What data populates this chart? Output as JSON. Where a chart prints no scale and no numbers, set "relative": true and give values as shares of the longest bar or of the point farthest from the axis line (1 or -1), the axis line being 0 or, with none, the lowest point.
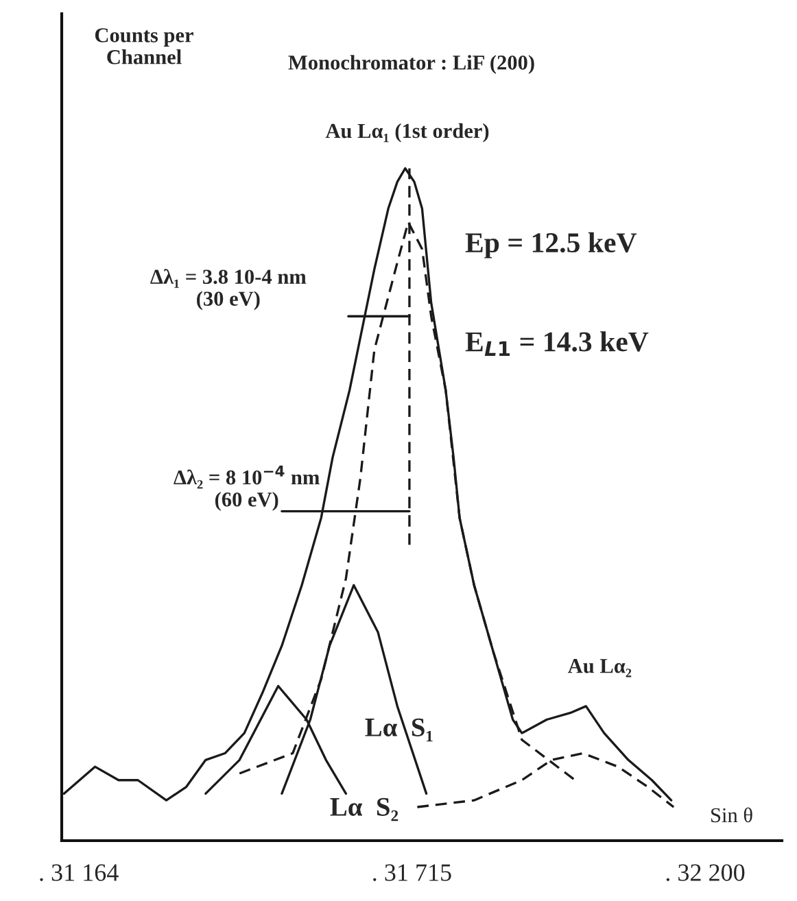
{
  "chart_data": {
    "type": "line",
    "relative": true,
    "title": "Monochromator : LiF (200)",
    "ylabel": "Counts per\nChannel",
    "xlabel": "Sin θ",
    "xlim": [
      31136,
      32327
    ],
    "xticks": [
      {
        "value": 31164,
        "label": ". 31 164"
      },
      {
        "value": 31715,
        "label": ". 31 715"
      },
      {
        "value": 32200,
        "label": ". 32 200"
      }
    ],
    "grid": false,
    "legend": false,
    "series": [
      {
        "line_style": "solid",
        "color": "#1a1a1a",
        "x": [
          31140,
          31191,
          31230,
          31262,
          31309,
          31342,
          31374,
          31406,
          31438,
          31468,
          31500,
          31533,
          31565,
          31584,
          31612,
          31653,
          31676,
          31691,
          31704,
          31719,
          31732,
          31747,
          31771,
          31784,
          31794,
          31818,
          31850,
          31882,
          31897,
          31938,
          31977,
          32003,
          32033,
          32073,
          32112,
          32144
        ],
        "values": [
          0.07,
          0.11,
          0.09,
          0.09,
          0.06,
          0.08,
          0.12,
          0.13,
          0.16,
          0.22,
          0.29,
          0.38,
          0.48,
          0.57,
          0.67,
          0.85,
          0.94,
          0.98,
          1.0,
          0.98,
          0.94,
          0.8,
          0.67,
          0.57,
          0.48,
          0.38,
          0.28,
          0.18,
          0.16,
          0.18,
          0.19,
          0.2,
          0.16,
          0.12,
          0.09,
          0.06
        ]
      },
      {
        "line_style": "dashed",
        "color": "#1a1a1a",
        "x": [
          31430,
          31518,
          31565,
          31606,
          31630,
          31653,
          31691,
          31709,
          31732,
          31747,
          31771,
          31794,
          31818,
          31850,
          31897,
          31985
        ],
        "values": [
          0.1,
          0.13,
          0.24,
          0.39,
          0.54,
          0.73,
          0.86,
          0.92,
          0.88,
          0.78,
          0.67,
          0.48,
          0.38,
          0.28,
          0.15,
          0.09
        ]
      },
      {
        "line_style": "dashed",
        "color": "#1a1a1a",
        "x": [
          31724,
          31818,
          31897,
          31946,
          31998,
          32056,
          32105,
          32148
        ],
        "values": [
          0.05,
          0.06,
          0.09,
          0.12,
          0.13,
          0.11,
          0.08,
          0.05
        ]
      },
      {
        "line_style": "solid",
        "color": "#1a1a1a",
        "x": [
          31374,
          31430,
          31494,
          31541,
          31573,
          31606
        ],
        "values": [
          0.07,
          0.12,
          0.23,
          0.18,
          0.12,
          0.07
        ]
      },
      {
        "line_style": "solid",
        "color": "#1a1a1a",
        "x": [
          31500,
          31547,
          31579,
          31619,
          31659,
          31691,
          31739
        ],
        "values": [
          0.07,
          0.18,
          0.29,
          0.38,
          0.31,
          0.2,
          0.07
        ]
      },
      {
        "line_style": "dashed",
        "color": "#1a1a1a",
        "x": [
          31711,
          31711
        ],
        "values": [
          0.44,
          1.0
        ]
      },
      {
        "line_style": "solid",
        "color": "#1a1a1a",
        "x": [
          31610,
          31711
        ],
        "values": [
          0.78,
          0.78
        ]
      },
      {
        "line_style": "solid",
        "color": "#1a1a1a",
        "x": [
          31500,
          31711
        ],
        "values": [
          0.49,
          0.49
        ]
      }
    ],
    "annotations": [
      "Au Lα₁ (1st order)",
      {
        "text": "Δλ₁ = 3.8 10-4 nm\n(30 eV)",
        "x": 31610,
        "y": 0.78
      },
      {
        "text": "Δλ₂ = 8 10$^{−4}$ nm\n(60 eV)",
        "x": 31500,
        "y": 0.49
      },
      "Ep = 12.5 keV",
      "E$_{L1}$ = 14.3 keV",
      {
        "text": "Lα  S₁",
        "x": 31694,
        "y": 0.165
      },
      "Lα  S₂",
      "Au Lα₂"
    ]
  }
}
